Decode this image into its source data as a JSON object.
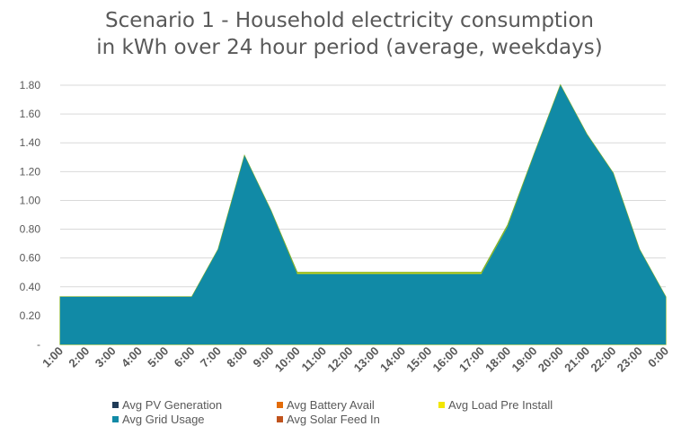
{
  "chart_data": {
    "type": "area",
    "title_lines": [
      "Scenario 1 - Household electricity consumption",
      "in kWh over 24 hour period (average, weekdays)"
    ],
    "categories": [
      "1:00",
      "2:00",
      "3:00",
      "4:00",
      "5:00",
      "6:00",
      "7:00",
      "8:00",
      "9:00",
      "10:00",
      "11:00",
      "12:00",
      "13:00",
      "14:00",
      "15:00",
      "16:00",
      "17:00",
      "18:00",
      "19:00",
      "20:00",
      "21:00",
      "22:00",
      "23:00",
      "0:00"
    ],
    "y_ticks": [
      "-",
      "0.20",
      "0.40",
      "0.60",
      "0.80",
      "1.00",
      "1.20",
      "1.40",
      "1.60",
      "1.80"
    ],
    "ylim": [
      0,
      1.8
    ],
    "grid": true,
    "legend_position": "bottom",
    "series": [
      {
        "name": "Avg PV Generation",
        "color": "#1f3b57",
        "values": [
          0,
          0,
          0,
          0,
          0,
          0,
          0,
          0,
          0,
          0,
          0,
          0,
          0,
          0,
          0,
          0,
          0,
          0,
          0,
          0,
          0,
          0,
          0,
          0
        ]
      },
      {
        "name": "Avg Battery Avail",
        "color": "#e36c0a",
        "values": [
          0,
          0,
          0,
          0,
          0,
          0,
          0,
          0,
          0,
          0,
          0,
          0,
          0,
          0,
          0,
          0,
          0,
          0,
          0,
          0,
          0,
          0,
          0,
          0
        ]
      },
      {
        "name": "Avg Load Pre Install",
        "color": "#f2e600",
        "values": [
          0.33,
          0.33,
          0.33,
          0.33,
          0.33,
          0.33,
          0.66,
          1.31,
          0.93,
          0.5,
          0.5,
          0.5,
          0.5,
          0.5,
          0.5,
          0.5,
          0.5,
          0.83,
          1.32,
          1.8,
          1.46,
          1.19,
          0.66,
          0.33
        ]
      },
      {
        "name": "Avg Grid Usage",
        "color": "#118aa6",
        "values": [
          0.33,
          0.33,
          0.33,
          0.33,
          0.33,
          0.33,
          0.66,
          1.31,
          0.93,
          0.49,
          0.49,
          0.49,
          0.49,
          0.49,
          0.49,
          0.49,
          0.49,
          0.82,
          1.32,
          1.8,
          1.46,
          1.19,
          0.66,
          0.33
        ]
      },
      {
        "name": "Avg Solar Feed In",
        "color": "#c0531d",
        "values": [
          0,
          0,
          0,
          0,
          0,
          0,
          0,
          0,
          0,
          0,
          0,
          0,
          0,
          0,
          0,
          0,
          0,
          0,
          0,
          0,
          0,
          0,
          0,
          0
        ]
      }
    ]
  }
}
